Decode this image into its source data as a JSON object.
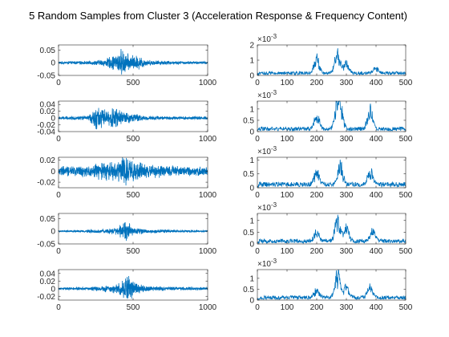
{
  "figure": {
    "title": "5 Random Samples from Cluster 3 (Acceleration Response & Frequency Content)"
  },
  "colors": {
    "line": "#0072BD",
    "axes": "#262626",
    "background": "#ffffff"
  },
  "chart_data": [
    {
      "type": "line",
      "row": 1,
      "col": 1,
      "xlim": [
        0,
        1000
      ],
      "ylim": [
        -0.05,
        0.07
      ],
      "xticks": [
        "0",
        "500",
        "1000"
      ],
      "yticks": [
        "0.05",
        "0",
        "-0.05"
      ],
      "ytick_values": [
        0.05,
        0,
        -0.05
      ],
      "grid": false,
      "y_exponent": "",
      "signal": {
        "n": 1000,
        "envelope": [
          [
            0,
            0.005
          ],
          [
            200,
            0.006
          ],
          [
            300,
            0.012
          ],
          [
            380,
            0.03
          ],
          [
            420,
            0.05
          ],
          [
            470,
            0.03
          ],
          [
            540,
            0.025
          ],
          [
            600,
            0.01
          ],
          [
            800,
            0.006
          ],
          [
            1000,
            0.005
          ]
        ]
      }
    },
    {
      "type": "line",
      "row": 1,
      "col": 2,
      "xlim": [
        0,
        500
      ],
      "ylim": [
        0,
        2
      ],
      "xticks": [
        "0",
        "100",
        "200",
        "300",
        "400",
        "500"
      ],
      "yticks": [
        "2",
        "1",
        "0"
      ],
      "ytick_values": [
        2,
        1,
        0
      ],
      "grid": false,
      "y_exponent": "×10",
      "y_exponent_power": "-3",
      "spectrum": {
        "n": 500,
        "base": 0.15,
        "peaks": [
          [
            200,
            1.2
          ],
          [
            270,
            1.7
          ],
          [
            300,
            0.8
          ],
          [
            400,
            0.4
          ]
        ]
      }
    },
    {
      "type": "line",
      "row": 2,
      "col": 1,
      "xlim": [
        0,
        1000
      ],
      "ylim": [
        -0.04,
        0.05
      ],
      "xticks": [
        "0",
        "500",
        "1000"
      ],
      "yticks": [
        "0.04",
        "0.02",
        "0",
        "-0.02",
        "-0.04"
      ],
      "ytick_values": [
        0.04,
        0.02,
        0,
        -0.02,
        -0.04
      ],
      "grid": false,
      "y_exponent": "",
      "signal": {
        "n": 1000,
        "envelope": [
          [
            0,
            0.004
          ],
          [
            200,
            0.006
          ],
          [
            260,
            0.035
          ],
          [
            320,
            0.02
          ],
          [
            370,
            0.03
          ],
          [
            420,
            0.02
          ],
          [
            470,
            0.015
          ],
          [
            600,
            0.006
          ],
          [
            1000,
            0.004
          ]
        ]
      }
    },
    {
      "type": "line",
      "row": 2,
      "col": 2,
      "xlim": [
        0,
        500
      ],
      "ylim": [
        0,
        1.35
      ],
      "xticks": [
        "0",
        "100",
        "200",
        "300",
        "400",
        "500"
      ],
      "yticks": [
        "1",
        "0.5",
        "0"
      ],
      "ytick_values": [
        1,
        0.5,
        0
      ],
      "grid": false,
      "y_exponent": "×10",
      "y_exponent_power": "-3",
      "spectrum": {
        "n": 500,
        "base": 0.12,
        "peaks": [
          [
            200,
            0.7
          ],
          [
            270,
            1.3
          ],
          [
            280,
            0.9
          ],
          [
            380,
            1.1
          ]
        ]
      }
    },
    {
      "type": "line",
      "row": 3,
      "col": 1,
      "xlim": [
        0,
        1000
      ],
      "ylim": [
        -0.03,
        0.025
      ],
      "xticks": [
        "0",
        "500",
        "1000"
      ],
      "yticks": [
        "0.02",
        "0",
        "-0.02"
      ],
      "ytick_values": [
        0.02,
        0,
        -0.02
      ],
      "grid": false,
      "y_exponent": "",
      "signal": {
        "n": 1000,
        "envelope": [
          [
            0,
            0.008
          ],
          [
            200,
            0.01
          ],
          [
            300,
            0.015
          ],
          [
            400,
            0.018
          ],
          [
            440,
            0.028
          ],
          [
            500,
            0.016
          ],
          [
            700,
            0.01
          ],
          [
            1000,
            0.007
          ]
        ]
      }
    },
    {
      "type": "line",
      "row": 3,
      "col": 2,
      "xlim": [
        0,
        500
      ],
      "ylim": [
        0,
        1.1
      ],
      "xticks": [
        "0",
        "100",
        "200",
        "300",
        "400",
        "500"
      ],
      "yticks": [
        "1",
        "0.5",
        "0"
      ],
      "ytick_values": [
        1,
        0.5,
        0
      ],
      "grid": false,
      "y_exponent": "×10",
      "y_exponent_power": "-3",
      "spectrum": {
        "n": 500,
        "base": 0.12,
        "peaks": [
          [
            200,
            0.55
          ],
          [
            280,
            0.85
          ],
          [
            380,
            0.6
          ]
        ]
      }
    },
    {
      "type": "line",
      "row": 4,
      "col": 1,
      "xlim": [
        0,
        1000
      ],
      "ylim": [
        -0.05,
        0.07
      ],
      "xticks": [
        "0",
        "500",
        "1000"
      ],
      "yticks": [
        "0.05",
        "0",
        "-0.05"
      ],
      "ytick_values": [
        0.05,
        0,
        -0.05
      ],
      "grid": false,
      "y_exponent": "",
      "signal": {
        "n": 1000,
        "envelope": [
          [
            0,
            0.003
          ],
          [
            200,
            0.005
          ],
          [
            300,
            0.008
          ],
          [
            400,
            0.015
          ],
          [
            450,
            0.04
          ],
          [
            500,
            0.015
          ],
          [
            600,
            0.007
          ],
          [
            1000,
            0.003
          ]
        ]
      }
    },
    {
      "type": "line",
      "row": 4,
      "col": 2,
      "xlim": [
        0,
        500
      ],
      "ylim": [
        0,
        1.3
      ],
      "xticks": [
        "0",
        "100",
        "200",
        "300",
        "400",
        "500"
      ],
      "yticks": [
        "1",
        "0.5",
        "0"
      ],
      "ytick_values": [
        1,
        0.5,
        0
      ],
      "grid": false,
      "y_exponent": "×10",
      "y_exponent_power": "-3",
      "spectrum": {
        "n": 500,
        "base": 0.12,
        "peaks": [
          [
            200,
            0.5
          ],
          [
            270,
            1.2
          ],
          [
            300,
            0.7
          ],
          [
            390,
            0.5
          ]
        ]
      }
    },
    {
      "type": "line",
      "row": 5,
      "col": 1,
      "xlim": [
        0,
        1000
      ],
      "ylim": [
        -0.03,
        0.05
      ],
      "xticks": [
        "0",
        "500",
        "1000"
      ],
      "yticks": [
        "0.04",
        "0.02",
        "0",
        "-0.02"
      ],
      "ytick_values": [
        0.04,
        0.02,
        0,
        -0.02
      ],
      "grid": false,
      "y_exponent": "",
      "signal": {
        "n": 1000,
        "envelope": [
          [
            0,
            0.003
          ],
          [
            200,
            0.004
          ],
          [
            300,
            0.007
          ],
          [
            400,
            0.012
          ],
          [
            460,
            0.035
          ],
          [
            520,
            0.015
          ],
          [
            600,
            0.006
          ],
          [
            1000,
            0.003
          ]
        ]
      }
    },
    {
      "type": "line",
      "row": 5,
      "col": 2,
      "xlim": [
        0,
        500
      ],
      "ylim": [
        0,
        1.4
      ],
      "xticks": [
        "0",
        "100",
        "200",
        "300",
        "400",
        "500"
      ],
      "yticks": [
        "1",
        "0.5",
        "0"
      ],
      "ytick_values": [
        1,
        0.5,
        0
      ],
      "grid": false,
      "y_exponent": "×10",
      "y_exponent_power": "-3",
      "spectrum": {
        "n": 500,
        "base": 0.12,
        "peaks": [
          [
            200,
            0.4
          ],
          [
            270,
            1.3
          ],
          [
            300,
            0.6
          ],
          [
            380,
            0.6
          ]
        ]
      }
    }
  ]
}
